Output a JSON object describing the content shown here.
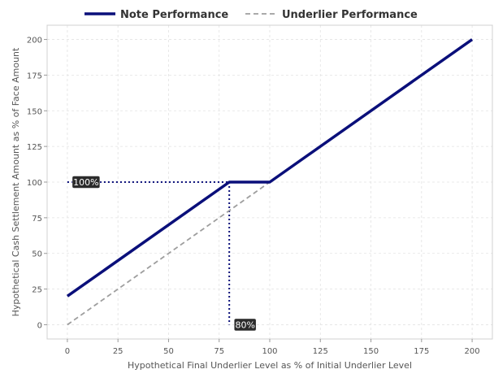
{
  "chart_data": {
    "type": "line",
    "title": "",
    "xlabel": "Hypothetical Final Underlier Level as % of Initial Underlier Level",
    "ylabel": "Hypothetical Cash Settlement Amount as % of Face Amount",
    "xlim": [
      -10,
      210
    ],
    "ylim": [
      -10,
      210
    ],
    "xticks": [
      0,
      25,
      50,
      75,
      100,
      125,
      150,
      175,
      200
    ],
    "yticks": [
      0,
      25,
      50,
      75,
      100,
      125,
      150,
      175,
      200
    ],
    "grid": true,
    "legend_position": "top-center",
    "series": [
      {
        "name": "Note Performance",
        "color": "#0a0f7a",
        "style": "solid",
        "points": [
          [
            0,
            20
          ],
          [
            80,
            100
          ],
          [
            100,
            100
          ],
          [
            200,
            200
          ]
        ]
      },
      {
        "name": "Underlier Performance",
        "color": "#9e9e9e",
        "style": "dashed",
        "points": [
          [
            0,
            0
          ],
          [
            200,
            200
          ]
        ]
      }
    ],
    "reference_lines": [
      {
        "from": [
          0,
          100
        ],
        "to": [
          80,
          100
        ],
        "color": "#0a0f7a",
        "style": "dotted"
      },
      {
        "from": [
          80,
          100
        ],
        "to": [
          80,
          0
        ],
        "color": "#0a0f7a",
        "style": "dotted"
      }
    ],
    "annotations": [
      {
        "text": "100%",
        "x": 0,
        "y": 100
      },
      {
        "text": "80%",
        "x": 80,
        "y": 0
      }
    ]
  }
}
